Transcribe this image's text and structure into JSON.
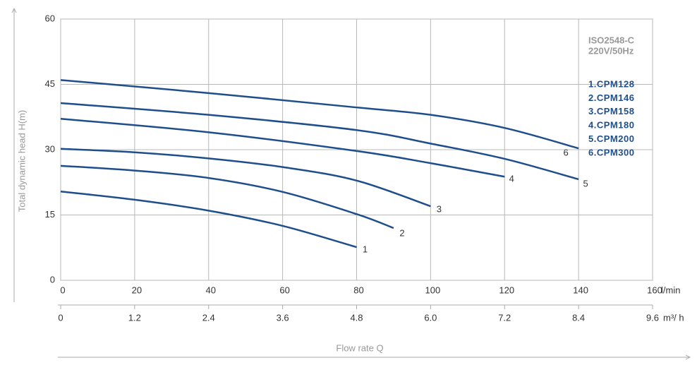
{
  "chart_data": {
    "type": "line",
    "y_label": "Total dynamic head H(m)",
    "x_label": "Flow rate Q",
    "x_unit": "l/min",
    "x2_unit": "m³/ h",
    "annotations": [
      "ISO2548-C",
      "220V/50Hz"
    ],
    "xlim": [
      0,
      160
    ],
    "xticks": [
      0,
      20,
      40,
      60,
      80,
      100,
      120,
      140,
      160
    ],
    "x2lim": [
      0,
      9.6
    ],
    "x2ticks": [
      0,
      1.2,
      2.4,
      3.6,
      4.8,
      {
        "value": 6,
        "label": "6.0"
      },
      7.2,
      8.4,
      9.6
    ],
    "ylim": [
      0,
      60
    ],
    "yticks": [
      0,
      15,
      30,
      45,
      60
    ],
    "grid": true,
    "series": [
      {
        "name": "1.CPM128",
        "label": "1",
        "color": "#1f4e8c",
        "x": [
          0,
          20,
          40,
          60,
          80
        ],
        "values": [
          20.4,
          18.5,
          16,
          12.5,
          7.6
        ]
      },
      {
        "name": "2.CPM146",
        "label": "2",
        "color": "#1f4e8c",
        "x": [
          0,
          20,
          40,
          60,
          80,
          90
        ],
        "values": [
          26.3,
          25.2,
          23.5,
          20.3,
          15.2,
          12
        ]
      },
      {
        "name": "3.CPM158",
        "label": "3",
        "color": "#1f4e8c",
        "x": [
          0,
          20,
          40,
          60,
          80,
          100
        ],
        "values": [
          30.2,
          29.4,
          28,
          26,
          22.9,
          17
        ]
      },
      {
        "name": "4.CPM180",
        "label": "4",
        "color": "#1f4e8c",
        "x": [
          0,
          40,
          80,
          100,
          120
        ],
        "values": [
          37.1,
          34,
          29.7,
          26.9,
          23.8
        ]
      },
      {
        "name": "5.CPM200",
        "label": "5",
        "color": "#1f4e8c",
        "x": [
          0,
          40,
          80,
          100,
          120,
          140
        ],
        "values": [
          40.7,
          38,
          34.5,
          31.4,
          27.9,
          23.2
        ]
      },
      {
        "name": "6.CPM300",
        "label": "6",
        "color": "#1f4e8c",
        "x": [
          0,
          40,
          80,
          100,
          120,
          140
        ],
        "values": [
          46,
          43,
          39.7,
          38,
          35,
          30.3
        ]
      }
    ]
  }
}
